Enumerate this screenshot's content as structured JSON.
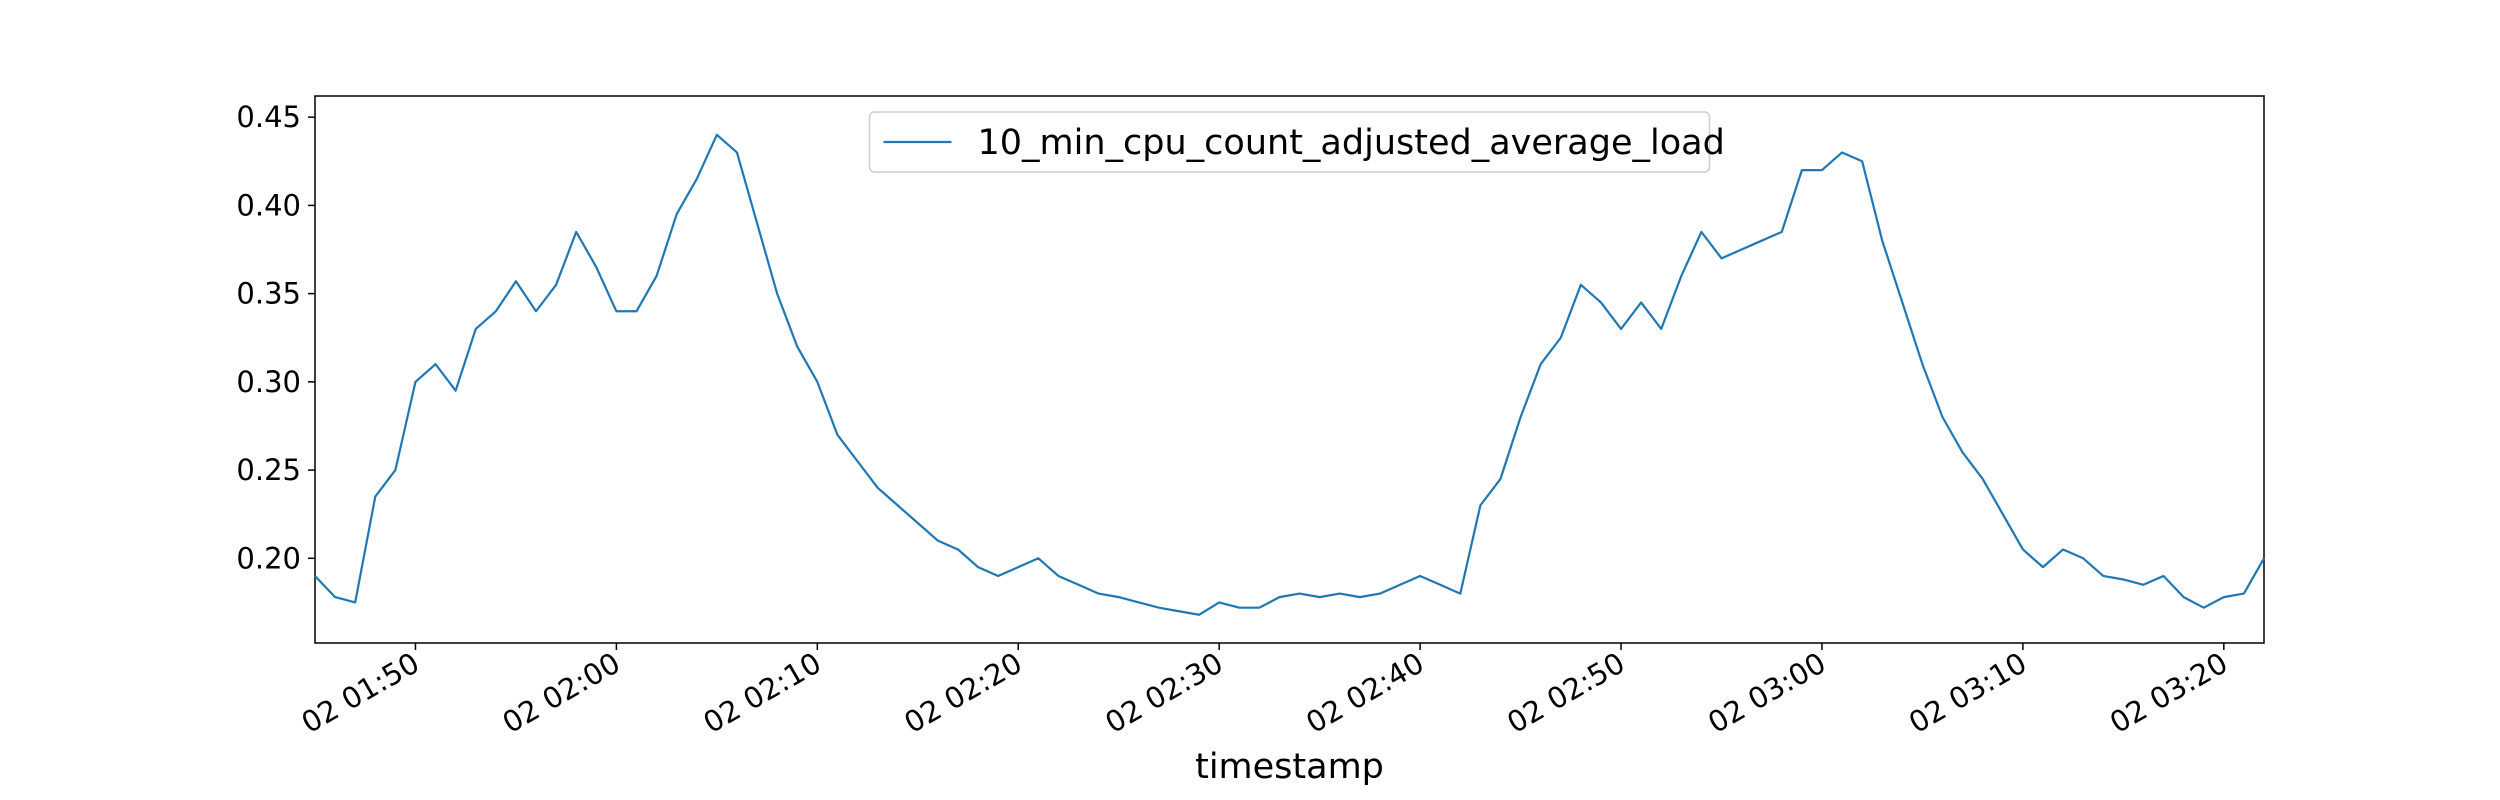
{
  "chart_data": {
    "type": "line",
    "xlabel": "timestamp",
    "x": [
      "02 01:45",
      "02 01:46",
      "02 01:47",
      "02 01:48",
      "02 01:49",
      "02 01:50",
      "02 01:51",
      "02 01:52",
      "02 01:53",
      "02 01:54",
      "02 01:55",
      "02 01:56",
      "02 01:57",
      "02 01:58",
      "02 01:59",
      "02 02:00",
      "02 02:01",
      "02 02:02",
      "02 02:03",
      "02 02:04",
      "02 02:05",
      "02 02:06",
      "02 02:07",
      "02 02:08",
      "02 02:09",
      "02 02:10",
      "02 02:11",
      "02 02:12",
      "02 02:13",
      "02 02:14",
      "02 02:15",
      "02 02:16",
      "02 02:17",
      "02 02:18",
      "02 02:19",
      "02 02:20",
      "02 02:21",
      "02 02:22",
      "02 02:23",
      "02 02:24",
      "02 02:25",
      "02 02:26",
      "02 02:27",
      "02 02:28",
      "02 02:29",
      "02 02:30",
      "02 02:31",
      "02 02:32",
      "02 02:33",
      "02 02:34",
      "02 02:35",
      "02 02:36",
      "02 02:37",
      "02 02:38",
      "02 02:39",
      "02 02:40",
      "02 02:41",
      "02 02:42",
      "02 02:43",
      "02 02:44",
      "02 02:45",
      "02 02:46",
      "02 02:47",
      "02 02:48",
      "02 02:49",
      "02 02:50",
      "02 02:51",
      "02 02:52",
      "02 02:53",
      "02 02:54",
      "02 02:55",
      "02 02:56",
      "02 02:57",
      "02 02:58",
      "02 02:59",
      "02 03:00",
      "02 03:01",
      "02 03:02",
      "02 03:03",
      "02 03:04",
      "02 03:05",
      "02 03:06",
      "02 03:07",
      "02 03:08",
      "02 03:09",
      "02 03:10",
      "02 03:11",
      "02 03:12",
      "02 03:13",
      "02 03:14",
      "02 03:15",
      "02 03:16",
      "02 03:17",
      "02 03:18",
      "02 03:19",
      "02 03:20",
      "02 03:21",
      "02 03:22"
    ],
    "series": [
      {
        "name": "10_min_cpu_count_adjusted_average_load",
        "color": "#1f77b4",
        "values": [
          0.19,
          0.178,
          0.175,
          0.235,
          0.25,
          0.3,
          0.31,
          0.295,
          0.33,
          0.34,
          0.357,
          0.34,
          0.355,
          0.385,
          0.365,
          0.34,
          0.34,
          0.36,
          0.395,
          0.415,
          0.44,
          0.43,
          0.39,
          0.35,
          0.32,
          0.3,
          0.27,
          0.255,
          0.24,
          0.23,
          0.22,
          0.21,
          0.205,
          0.195,
          0.19,
          0.195,
          0.2,
          0.19,
          0.185,
          0.18,
          0.178,
          0.175,
          0.172,
          0.17,
          0.168,
          0.175,
          0.172,
          0.172,
          0.178,
          0.18,
          0.178,
          0.18,
          0.178,
          0.18,
          0.185,
          0.19,
          0.185,
          0.18,
          0.23,
          0.245,
          0.28,
          0.31,
          0.325,
          0.355,
          0.345,
          0.33,
          0.345,
          0.33,
          0.36,
          0.385,
          0.37,
          0.375,
          0.38,
          0.385,
          0.42,
          0.42,
          0.43,
          0.425,
          0.38,
          0.345,
          0.31,
          0.28,
          0.26,
          0.245,
          0.225,
          0.205,
          0.195,
          0.205,
          0.2,
          0.19,
          0.188,
          0.185,
          0.19,
          0.178,
          0.172,
          0.178,
          0.18,
          0.2
        ]
      }
    ],
    "xlim": [
      "02 01:45",
      "02 03:22"
    ],
    "xticks": [
      "02 01:50",
      "02 02:00",
      "02 02:10",
      "02 02:20",
      "02 02:30",
      "02 02:40",
      "02 02:50",
      "02 03:00",
      "02 03:10",
      "02 03:20"
    ],
    "ylim": [
      0.152,
      0.462
    ],
    "yticks": [
      {
        "value": 0.2,
        "label": "0.20"
      },
      {
        "value": 0.25,
        "label": "0.25"
      },
      {
        "value": 0.3,
        "label": "0.30"
      },
      {
        "value": 0.35,
        "label": "0.35"
      },
      {
        "value": 0.4,
        "label": "0.40"
      },
      {
        "value": 0.45,
        "label": "0.45"
      }
    ],
    "grid": false,
    "legend": "upper center"
  }
}
